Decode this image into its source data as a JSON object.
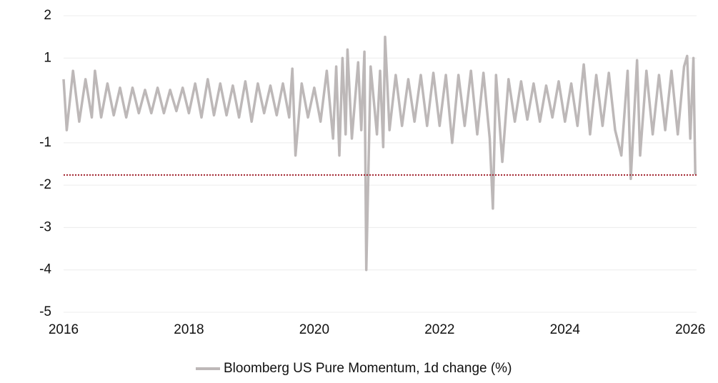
{
  "chart_data": {
    "type": "line",
    "x": [
      2016.0,
      2016.05,
      2016.15,
      2016.25,
      2016.35,
      2016.45,
      2016.5,
      2016.6,
      2016.7,
      2016.8,
      2016.9,
      2017.0,
      2017.1,
      2017.2,
      2017.3,
      2017.4,
      2017.5,
      2017.6,
      2017.7,
      2017.8,
      2017.9,
      2018.0,
      2018.1,
      2018.2,
      2018.3,
      2018.4,
      2018.5,
      2018.6,
      2018.7,
      2018.8,
      2018.9,
      2019.0,
      2019.1,
      2019.2,
      2019.3,
      2019.4,
      2019.5,
      2019.6,
      2019.65,
      2019.7,
      2019.8,
      2019.9,
      2020.0,
      2020.1,
      2020.2,
      2020.3,
      2020.35,
      2020.4,
      2020.45,
      2020.5,
      2020.53,
      2020.6,
      2020.7,
      2020.75,
      2020.8,
      2020.83,
      2020.9,
      2021.0,
      2021.05,
      2021.1,
      2021.13,
      2021.2,
      2021.3,
      2021.4,
      2021.5,
      2021.6,
      2021.7,
      2021.8,
      2021.9,
      2022.0,
      2022.1,
      2022.2,
      2022.3,
      2022.4,
      2022.5,
      2022.6,
      2022.7,
      2022.8,
      2022.85,
      2022.9,
      2023.0,
      2023.1,
      2023.2,
      2023.3,
      2023.4,
      2023.5,
      2023.6,
      2023.7,
      2023.8,
      2023.9,
      2024.0,
      2024.1,
      2024.2,
      2024.3,
      2024.4,
      2024.5,
      2024.6,
      2024.7,
      2024.8,
      2024.9,
      2025.0,
      2025.05,
      2025.15,
      2025.2,
      2025.3,
      2025.4,
      2025.5,
      2025.6,
      2025.7,
      2025.8,
      2025.9,
      2025.95,
      2026.0,
      2026.05,
      2026.08
    ],
    "series": [
      {
        "name": "Bloomberg US Pure Momentum, 1d change (%)",
        "color": "#bdb8b8",
        "values": [
          0.5,
          -0.7,
          0.7,
          -0.5,
          0.5,
          -0.4,
          0.7,
          -0.4,
          0.4,
          -0.35,
          0.3,
          -0.4,
          0.3,
          -0.3,
          0.25,
          -0.3,
          0.3,
          -0.3,
          0.25,
          -0.25,
          0.3,
          -0.3,
          0.4,
          -0.4,
          0.5,
          -0.35,
          0.4,
          -0.35,
          0.35,
          -0.4,
          0.45,
          -0.5,
          0.4,
          -0.3,
          0.35,
          -0.35,
          0.4,
          -0.4,
          0.75,
          -1.3,
          0.4,
          -0.4,
          0.3,
          -0.5,
          0.7,
          -0.9,
          0.8,
          -1.3,
          1.0,
          -0.8,
          1.2,
          -0.9,
          0.9,
          -0.7,
          1.15,
          -4.0,
          0.8,
          -0.8,
          0.7,
          -1.1,
          1.5,
          -0.7,
          0.6,
          -0.6,
          0.5,
          -0.5,
          0.6,
          -0.6,
          0.65,
          -0.6,
          0.6,
          -1.0,
          0.6,
          -0.6,
          0.7,
          -0.8,
          0.65,
          -0.9,
          -2.55,
          0.6,
          -1.45,
          0.5,
          -0.5,
          0.45,
          -0.45,
          0.4,
          -0.5,
          0.35,
          -0.4,
          0.45,
          -0.5,
          0.4,
          -0.6,
          0.85,
          -0.8,
          0.6,
          -0.6,
          0.65,
          -0.7,
          -1.3,
          0.7,
          -1.85,
          0.95,
          -1.3,
          0.7,
          -0.8,
          0.6,
          -0.7,
          0.7,
          -0.8,
          0.8,
          1.05,
          -0.9,
          1.0,
          -1.75
        ]
      }
    ],
    "xlim": [
      2016,
      2026.1
    ],
    "xticks": [
      2016,
      2018,
      2020,
      2022,
      2024,
      2026
    ],
    "ylim": [
      -5,
      2
    ],
    "yticks": [
      2,
      1,
      -1,
      -2,
      -3,
      -4,
      -5
    ],
    "grid": true,
    "reference_line": {
      "value": -1.76,
      "color": "#a0202c"
    },
    "legend": "bottom"
  }
}
